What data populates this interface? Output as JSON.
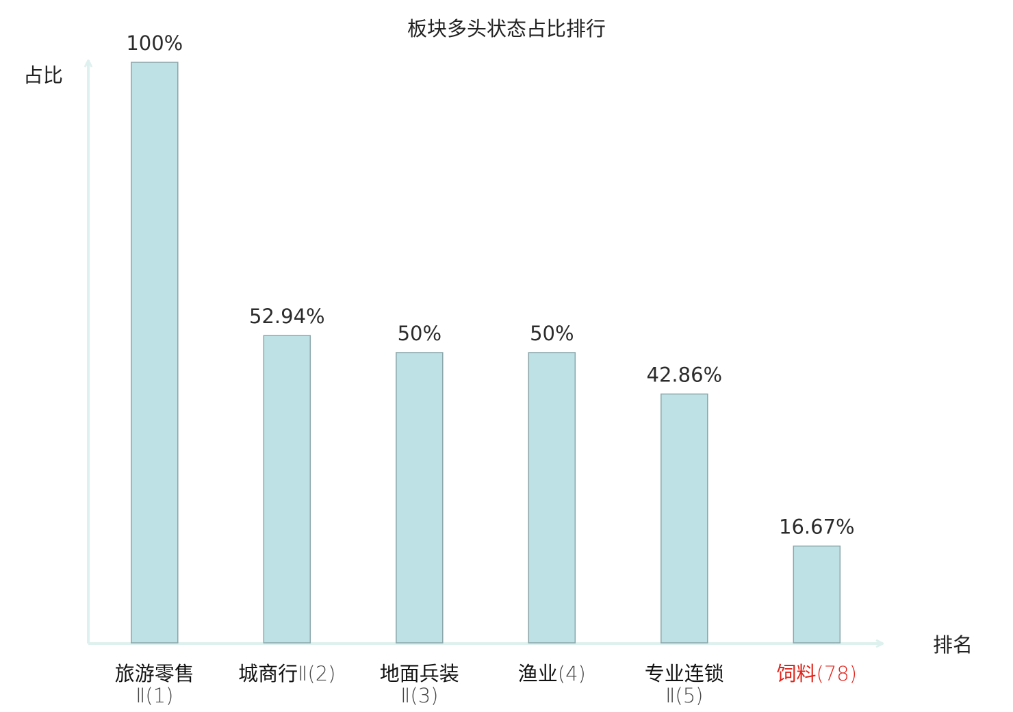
{
  "chart_data": {
    "type": "bar",
    "title": "板块多头状态占比排行",
    "ylabel": "占比",
    "xlabel": "排名",
    "ylim": [
      0,
      100
    ],
    "unit": "%",
    "grid": false,
    "bar_color": "#bde1e4",
    "bar_edge_color": "#8aa6aa",
    "axis_color": "#dff1ee",
    "highlight_color": "#e0241b",
    "categories": [
      {
        "name": "旅游零售",
        "suffix": "Ⅱ(1)",
        "wrap": true
      },
      {
        "name": "城商行",
        "suffix": "Ⅱ(2)",
        "wrap": false
      },
      {
        "name": "地面兵装",
        "suffix": "Ⅱ(3)",
        "wrap": true
      },
      {
        "name": "渔业",
        "suffix": "(4)",
        "wrap": false
      },
      {
        "name": "专业连锁",
        "suffix": "Ⅱ(5)",
        "wrap": true
      },
      {
        "name": "饲料",
        "suffix": "(78)",
        "wrap": false,
        "highlight": true
      }
    ],
    "values": [
      100,
      52.94,
      50,
      50,
      42.86,
      16.67
    ],
    "value_labels": [
      "100%",
      "52.94%",
      "50%",
      "50%",
      "42.86%",
      "16.67%"
    ]
  }
}
